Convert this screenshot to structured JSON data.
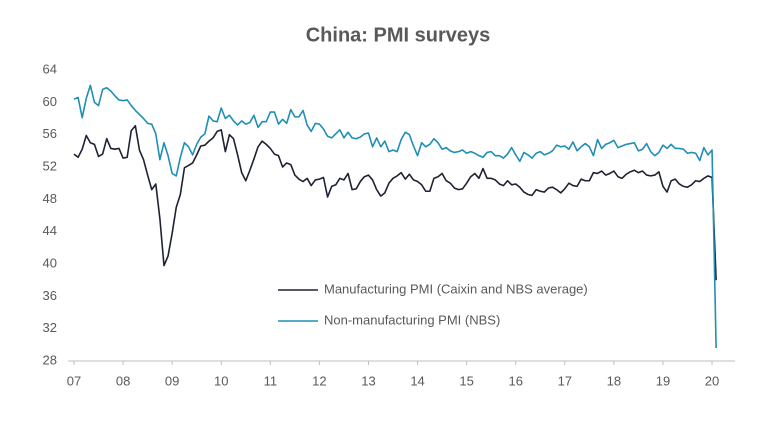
{
  "chart_data": {
    "type": "line",
    "title": "China: PMI surveys",
    "categories": [
      "07",
      null,
      null,
      null,
      null,
      null,
      null,
      null,
      null,
      null,
      null,
      null,
      "08",
      null,
      null,
      null,
      null,
      null,
      null,
      null,
      null,
      null,
      null,
      null,
      "09",
      null,
      null,
      null,
      null,
      null,
      null,
      null,
      null,
      null,
      null,
      null,
      "10",
      null,
      null,
      null,
      null,
      null,
      null,
      null,
      null,
      null,
      null,
      null,
      "11",
      null,
      null,
      null,
      null,
      null,
      null,
      null,
      null,
      null,
      null,
      null,
      "12",
      null,
      null,
      null,
      null,
      null,
      null,
      null,
      null,
      null,
      null,
      null,
      "13",
      null,
      null,
      null,
      null,
      null,
      null,
      null,
      null,
      null,
      null,
      null,
      "14",
      null,
      null,
      null,
      null,
      null,
      null,
      null,
      null,
      null,
      null,
      null,
      "15",
      null,
      null,
      null,
      null,
      null,
      null,
      null,
      null,
      null,
      null,
      null,
      "16",
      null,
      null,
      null,
      null,
      null,
      null,
      null,
      null,
      null,
      null,
      null,
      "17",
      null,
      null,
      null,
      null,
      null,
      null,
      null,
      null,
      null,
      null,
      null,
      "18",
      null,
      null,
      null,
      null,
      null,
      null,
      null,
      null,
      null,
      null,
      null,
      "19",
      null,
      null,
      null,
      null,
      null,
      null,
      null,
      null,
      null,
      null,
      null,
      "20",
      null
    ],
    "series": [
      {
        "name": "Manufacturing PMI (Caixin and NBS average)",
        "color": "#1f2233",
        "values": [
          53.6,
          53.2,
          54.2,
          55.9,
          55.0,
          54.8,
          53.3,
          53.6,
          55.5,
          54.3,
          54.2,
          54.3,
          53.1,
          53.2,
          56.5,
          57.1,
          54.1,
          52.9,
          51.0,
          49.2,
          49.9,
          45.6,
          39.8,
          41.0,
          43.8,
          47.0,
          48.6,
          51.9,
          52.2,
          52.5,
          53.5,
          54.6,
          54.7,
          55.2,
          55.6,
          56.4,
          56.6,
          53.9,
          56.0,
          55.5,
          53.5,
          51.3,
          50.3,
          51.6,
          53.0,
          54.5,
          55.2,
          54.8,
          54.3,
          53.6,
          53.4,
          52.0,
          52.5,
          52.3,
          51.0,
          50.5,
          50.2,
          50.6,
          49.7,
          50.4,
          50.5,
          50.7,
          48.3,
          49.6,
          49.8,
          50.6,
          50.4,
          51.2,
          49.2,
          49.3,
          50.2,
          50.8,
          51.0,
          50.4,
          49.2,
          48.4,
          48.8,
          50.0,
          50.6,
          50.9,
          51.3,
          50.5,
          51.1,
          50.4,
          50.2,
          49.8,
          49.0,
          49.0,
          50.6,
          50.8,
          51.2,
          50.3,
          50.0,
          49.4,
          49.2,
          49.3,
          50.0,
          50.8,
          51.2,
          50.6,
          51.8,
          50.6,
          50.6,
          50.4,
          49.9,
          49.7,
          50.3,
          49.8,
          49.9,
          49.5,
          48.9,
          48.6,
          48.5,
          49.2,
          49.0,
          48.9,
          49.4,
          49.5,
          49.2,
          48.8,
          49.3,
          50.0,
          49.7,
          49.6,
          50.5,
          50.3,
          50.3,
          51.3,
          51.2,
          51.5,
          51.0,
          51.2,
          51.5,
          50.8,
          50.6,
          51.1,
          51.4,
          51.6,
          51.3,
          51.5,
          51.0,
          50.9,
          51.0,
          51.4,
          49.6,
          48.9,
          50.3,
          50.5,
          49.9,
          49.6,
          49.5,
          49.8,
          50.3,
          50.2,
          50.6,
          50.9,
          50.7,
          38.0
        ]
      },
      {
        "name": "Non-manufacturing PMI (NBS)",
        "color": "#1f8fb5",
        "values": [
          60.4,
          60.6,
          58.1,
          60.5,
          62.1,
          60.0,
          59.6,
          61.6,
          61.8,
          61.4,
          60.8,
          60.3,
          60.2,
          60.3,
          59.6,
          59.0,
          58.5,
          58.0,
          57.4,
          57.3,
          56.1,
          52.9,
          55.0,
          53.4,
          51.2,
          50.9,
          53.2,
          55.0,
          54.5,
          53.5,
          54.8,
          55.7,
          56.1,
          58.3,
          57.7,
          57.6,
          59.3,
          58.0,
          58.4,
          57.7,
          57.2,
          57.7,
          57.3,
          57.5,
          58.4,
          56.9,
          57.6,
          57.6,
          58.8,
          58.8,
          57.3,
          57.9,
          57.4,
          59.1,
          58.2,
          58.2,
          59.0,
          57.2,
          56.4,
          57.4,
          57.3,
          56.7,
          55.8,
          55.6,
          56.1,
          56.6,
          55.6,
          56.3,
          55.6,
          55.5,
          55.7,
          56.1,
          56.2,
          54.5,
          55.6,
          54.5,
          55.2,
          53.9,
          54.1,
          53.9,
          55.4,
          56.3,
          56.0,
          54.6,
          53.4,
          55.0,
          54.5,
          54.8,
          55.5,
          55.0,
          54.2,
          54.4,
          54.0,
          53.8,
          53.9,
          54.1,
          53.7,
          53.9,
          53.7,
          53.4,
          53.2,
          53.8,
          53.9,
          53.4,
          53.4,
          53.1,
          53.6,
          54.4,
          53.5,
          52.7,
          53.8,
          53.5,
          53.1,
          53.7,
          53.9,
          53.5,
          53.7,
          54.0,
          54.7,
          54.5,
          54.6,
          54.2,
          55.1,
          54.0,
          54.5,
          54.9,
          54.5,
          53.4,
          55.4,
          54.3,
          54.8,
          55.0,
          55.3,
          54.4,
          54.6,
          54.8,
          54.9,
          55.0,
          54.0,
          54.2,
          54.9,
          53.9,
          53.4,
          53.8,
          54.7,
          54.3,
          54.8,
          54.3,
          54.3,
          54.2,
          53.7,
          53.8,
          53.7,
          52.8,
          54.4,
          53.5,
          54.1,
          29.6
        ]
      }
    ],
    "ylim": [
      28,
      64
    ],
    "yticks": [
      28,
      32,
      36,
      40,
      44,
      48,
      52,
      56,
      60,
      64
    ]
  }
}
